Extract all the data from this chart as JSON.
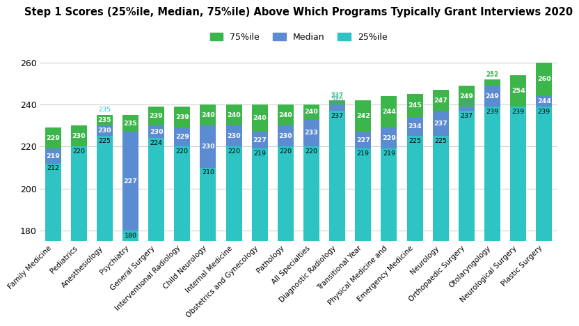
{
  "title": "Step 1 Scores (25%ile, Median, 75%ile) Above Which Programs Typically Grant Interviews 2020",
  "categories": [
    "Family Medicine",
    "Pediatrics",
    "Anesthesiology",
    "Psychiatry",
    "General Surgery",
    "Interventional Radiology",
    "Child Neurology",
    "Internal Medicine",
    "Obstetrics and Gynecology",
    "Pathology",
    "All Specialties",
    "Diagnostic Radiology",
    "Transitional Year",
    "Physical Medicine and",
    "Emergency Medicine",
    "Neurology",
    "Orthopaedic Surgery",
    "Otolaryngology",
    "Neurological Surgery",
    "Plastic Surgery"
  ],
  "p25": [
    212,
    220,
    225,
    180,
    224,
    220,
    210,
    220,
    219,
    220,
    220,
    237,
    219,
    219,
    225,
    225,
    237,
    239,
    239,
    239
  ],
  "median": [
    219,
    220,
    230,
    227,
    230,
    229,
    230,
    230,
    227,
    230,
    233,
    240,
    227,
    229,
    234,
    237,
    239,
    249,
    239,
    244
  ],
  "p75": [
    229,
    230,
    235,
    235,
    239,
    239,
    240,
    240,
    240,
    240,
    240,
    242,
    242,
    244,
    245,
    247,
    249,
    252,
    254,
    260
  ],
  "color_75": "#3cb54a",
  "color_median": "#5b8bd0",
  "color_25": "#2ec4c4",
  "ylim_min": 175,
  "ylim_max": 265,
  "yticks": [
    180,
    200,
    220,
    240,
    260
  ],
  "background_color": "#ffffff",
  "grid_color": "#d0d0d0",
  "bar_base": 175,
  "label_fontsize": 6.8
}
